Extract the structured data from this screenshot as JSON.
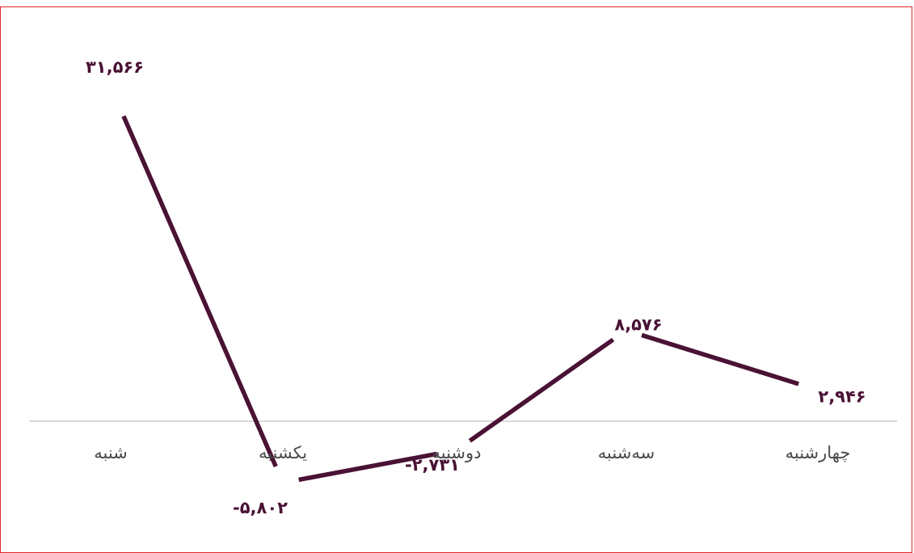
{
  "chart_data": {
    "type": "line",
    "categories": [
      "شنبه",
      "یکشنبه",
      "دوشنبه",
      "سه‌شنبه",
      "چهارشنبه"
    ],
    "values": [
      31566,
      -5802,
      -2731,
      8576,
      2946
    ],
    "value_labels": [
      "۳۱,۵۶۶",
      "-۵,۸۰۲",
      "-۲,۷۳۱",
      "۸,۵۷۶",
      "۲,۹۴۶"
    ],
    "ylim": [
      -14000,
      37000
    ],
    "grid": false,
    "legend": "none",
    "title": "",
    "xlabel": "",
    "ylabel": ""
  },
  "colors": {
    "line": "#4a1235",
    "frame": "#e0272f",
    "axis": "#d9d9d9",
    "category_text": "#4a4a4a"
  }
}
